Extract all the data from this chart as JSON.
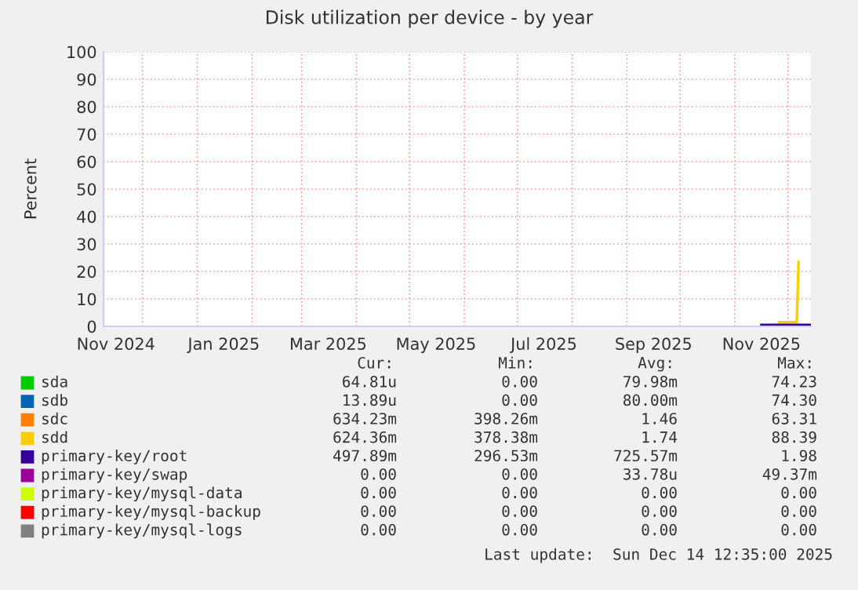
{
  "chart_data": {
    "type": "line",
    "title": "Disk utilization per device - by year",
    "ylabel": "Percent",
    "x": [
      "2025-11-16",
      "2025-11-20",
      "2025-11-24",
      "2025-11-26",
      "2025-12-02",
      "2025-12-04",
      "2025-12-06",
      "2025-12-07",
      "2025-12-08",
      "2025-12-10",
      "2025-12-14"
    ],
    "series": [
      {
        "name": "sda",
        "color": "#00cc00",
        "values": [
          null,
          null,
          null,
          null,
          null,
          null,
          null,
          null,
          null,
          null,
          null
        ]
      },
      {
        "name": "sdb",
        "color": "#0066b3",
        "values": [
          null,
          null,
          null,
          null,
          null,
          null,
          null,
          null,
          null,
          null,
          null
        ]
      },
      {
        "name": "sdc",
        "color": "#ff8000",
        "values": [
          null,
          null,
          null,
          null,
          null,
          null,
          null,
          null,
          null,
          null,
          null
        ]
      },
      {
        "name": "sdd",
        "color": "#ffcc00",
        "values": [
          null,
          null,
          null,
          1.5,
          1.5,
          1.5,
          1.5,
          23.5,
          null,
          null,
          null
        ]
      },
      {
        "name": "primary-key/root",
        "color": "#330099",
        "values": [
          0.5,
          0.5,
          0.5,
          0.5,
          0.5,
          0.5,
          0.5,
          0.5,
          0.5,
          0.5,
          0.5
        ]
      },
      {
        "name": "primary-key/swap",
        "color": "#990099",
        "values": [
          null,
          null,
          null,
          null,
          null,
          null,
          null,
          null,
          null,
          null,
          null
        ]
      },
      {
        "name": "primary-key/mysql-data",
        "color": "#ccff00",
        "values": [
          null,
          null,
          null,
          null,
          null,
          null,
          null,
          null,
          null,
          null,
          null
        ]
      },
      {
        "name": "primary-key/mysql-backup",
        "color": "#ff0000",
        "values": [
          null,
          null,
          null,
          null,
          null,
          null,
          null,
          null,
          null,
          null,
          null
        ]
      },
      {
        "name": "primary-key/mysql-logs",
        "color": "#808080",
        "values": [
          null,
          null,
          null,
          null,
          null,
          null,
          null,
          null,
          null,
          null,
          null
        ]
      }
    ],
    "xlim": [
      "2024-11-09",
      "2025-12-14"
    ],
    "xticks": [
      {
        "value": "2024-11-16",
        "label": "Nov 2024"
      },
      {
        "value": "2024-12-01",
        "label": null
      },
      {
        "value": "2025-01-01",
        "label": null
      },
      {
        "value": "2025-01-16",
        "label": "Jan 2025"
      },
      {
        "value": "2025-02-01",
        "label": null
      },
      {
        "value": "2025-03-01",
        "label": null
      },
      {
        "value": "2025-03-16",
        "label": "Mar 2025"
      },
      {
        "value": "2025-04-01",
        "label": null
      },
      {
        "value": "2025-05-01",
        "label": null
      },
      {
        "value": "2025-05-16",
        "label": "May 2025"
      },
      {
        "value": "2025-06-01",
        "label": null
      },
      {
        "value": "2025-07-01",
        "label": null
      },
      {
        "value": "2025-07-16",
        "label": "Jul 2025"
      },
      {
        "value": "2025-08-01",
        "label": null
      },
      {
        "value": "2025-09-01",
        "label": null
      },
      {
        "value": "2025-09-16",
        "label": "Sep 2025"
      },
      {
        "value": "2025-10-01",
        "label": null
      },
      {
        "value": "2025-11-01",
        "label": null
      },
      {
        "value": "2025-11-16",
        "label": "Nov 2025"
      },
      {
        "value": "2025-12-01",
        "label": null
      }
    ],
    "ylim": [
      0,
      100
    ],
    "yticks": [
      0,
      10,
      20,
      30,
      40,
      50,
      60,
      70,
      80,
      90,
      100
    ],
    "grid": true,
    "legend": "bottom",
    "annotations": [
      "Cur:",
      "Min:",
      "Avg:",
      "Max:",
      "64.81u",
      "0.00",
      "79.98m",
      "74.23",
      "13.89u",
      "0.00",
      "80.00m",
      "74.30",
      "634.23m",
      "398.26m",
      "1.46",
      "63.31",
      "624.36m",
      "378.38m",
      "1.74",
      "88.39",
      "497.89m",
      "296.53m",
      "725.57m",
      "1.98",
      "0.00",
      "0.00",
      "33.78u",
      "49.37m",
      "0.00",
      "0.00",
      "0.00",
      "0.00",
      "0.00",
      "0.00",
      "0.00",
      "0.00",
      "0.00",
      "0.00",
      "0.00",
      "0.00",
      "Last update:  Sun Dec 14 12:35:00 2025"
    ]
  }
}
